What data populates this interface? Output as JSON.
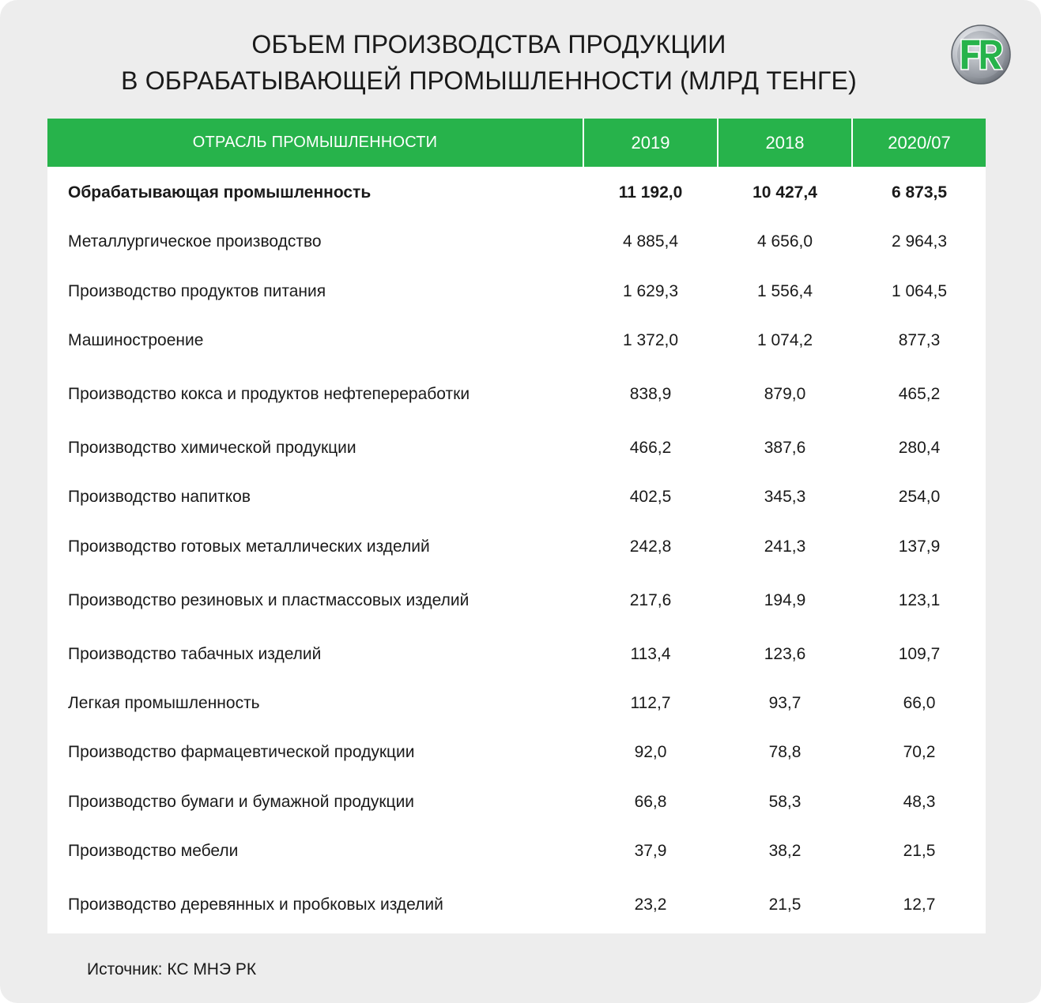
{
  "title_line1": "ОБЪЕМ ПРОИЗВОДСТВА ПРОДУКЦИИ",
  "title_line2": "В ОБРАБАТЫВАЮЩЕЙ ПРОМЫШЛЕННОСТИ (МЛРД ТЕНГЕ)",
  "logo": {
    "text": "FR",
    "icon": "fr-logo-icon",
    "colors": {
      "green": "#27b34b",
      "silver": "#b9bdc4"
    }
  },
  "colors": {
    "header_bg": "#27b34b",
    "card_bg": "#ededed",
    "table_bg": "#ffffff"
  },
  "source": "Источник: КС МНЭ РК",
  "chart_data": {
    "type": "table",
    "columns": [
      "ОТРАСЛЬ ПРОМЫШЛЕННОСТИ",
      "2019",
      "2018",
      "2020/07"
    ],
    "rows": [
      {
        "name": "Обрабатывающая промышленность",
        "values": [
          "11 192,0",
          "10 427,4",
          "6 873,5"
        ],
        "bold": true
      },
      {
        "name": "Металлургическое производство",
        "values": [
          "4 885,4",
          "4 656,0",
          "2 964,3"
        ]
      },
      {
        "name": "Производство продуктов питания",
        "values": [
          "1 629,3",
          "1 556,4",
          "1 064,5"
        ]
      },
      {
        "name": "Машиностроение",
        "values": [
          "1 372,0",
          "1 074,2",
          "877,3"
        ]
      },
      {
        "name": "Производство кокса и продуктов нефтепереработки",
        "values": [
          "838,9",
          "879,0",
          "465,2"
        ]
      },
      {
        "name": "Производство  химической продукции",
        "values": [
          "466,2",
          "387,6",
          "280,4"
        ]
      },
      {
        "name": "Производство напитков",
        "values": [
          "402,5",
          "345,3",
          "254,0"
        ]
      },
      {
        "name": "Производство готовых металлических изделий",
        "values": [
          "242,8",
          "241,3",
          "137,9"
        ]
      },
      {
        "name": "Производство резиновых и пластмассовых изделий",
        "values": [
          "217,6",
          "194,9",
          "123,1"
        ]
      },
      {
        "name": "Производство табачных изделий",
        "values": [
          "113,4",
          "123,6",
          "109,7"
        ]
      },
      {
        "name": "Легкая промышленность",
        "values": [
          "112,7",
          "93,7",
          "66,0"
        ]
      },
      {
        "name": "Производство фармацевтической продукции",
        "values": [
          "92,0",
          "78,8",
          "70,2"
        ]
      },
      {
        "name": "Производство бумаги и бумажной продукции",
        "values": [
          "66,8",
          "58,3",
          "48,3"
        ]
      },
      {
        "name": "Производство мебели",
        "values": [
          "37,9",
          "38,2",
          "21,5"
        ]
      },
      {
        "name": "Производство деревянных и пробковых изделий",
        "values": [
          "23,2",
          "21,5",
          "12,7"
        ]
      }
    ]
  }
}
